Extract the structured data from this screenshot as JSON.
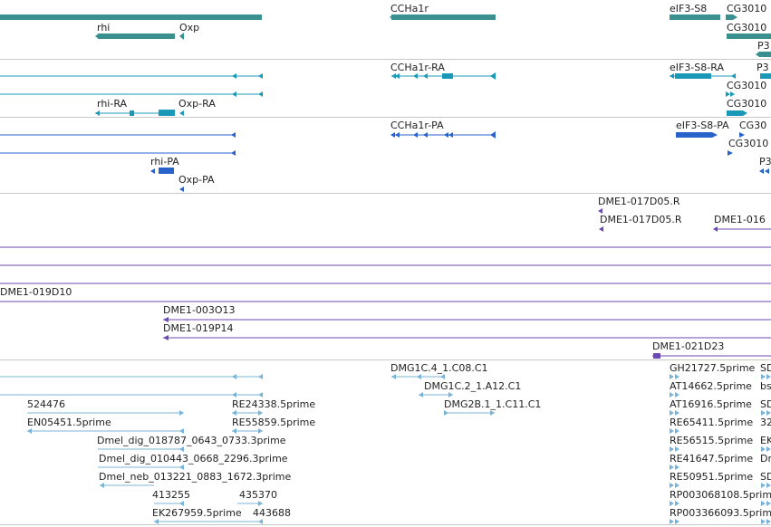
{
  "colors": {
    "gene": "#3a8f8f",
    "mrna": "#1a98b8",
    "protein": "#2a62cc",
    "clone": "#6a48b0",
    "est": "#78b4d8",
    "separator": "#c8c8c8"
  },
  "tracks": {
    "genes": {
      "labels": [
        "CCHa1r",
        "eIF3-S8",
        "CG3010",
        "rhi",
        "Oxp",
        "CG3010",
        "P3"
      ]
    },
    "transcripts": {
      "labels": [
        "CCHa1r-RA",
        "eIF3-S8-RA",
        "P3",
        "CG3010",
        "rhi-RA",
        "Oxp-RA",
        "CG3010"
      ]
    },
    "proteins": {
      "labels": [
        "CCHa1r-PA",
        "eIF3-S8-PA",
        "CG30",
        "CG3010",
        "rhi-PA",
        "Oxp-PA",
        "P3"
      ]
    },
    "clones": {
      "labels": [
        "DME1-017D05.R",
        "DME1-017D05.R",
        "DME1-016",
        "DME1-019D10",
        "DME1-003O13",
        "DME1-019P14",
        "DME1-021D23"
      ]
    },
    "ests": {
      "labels": [
        "DMG1C.4_1.C08.C1",
        "GH21727.5prime",
        "SD",
        "DMG1C.2_1.A12.C1",
        "AT14662.5prime",
        "bs",
        "524476",
        "RE24338.5prime",
        "DMG2B.1_1.C11.C1",
        "AT16916.5prime",
        "SD",
        "EN05451.5prime",
        "RE55859.5prime",
        "RE65411.5prime",
        "32",
        "Dmel_dig_018787_0643_0733.3prime",
        "RE56515.5prime",
        "EK",
        "Dmel_dig_010443_0668_2296.3prime",
        "RE41647.5prime",
        "Dr",
        "Dmel_neb_013221_0883_1672.3prime",
        "RE50951.5prime",
        "SD",
        "413255",
        "435370",
        "RP003068108.5prime",
        "EK267959.5prime",
        "443688",
        "RP003366093.5prime"
      ]
    }
  }
}
